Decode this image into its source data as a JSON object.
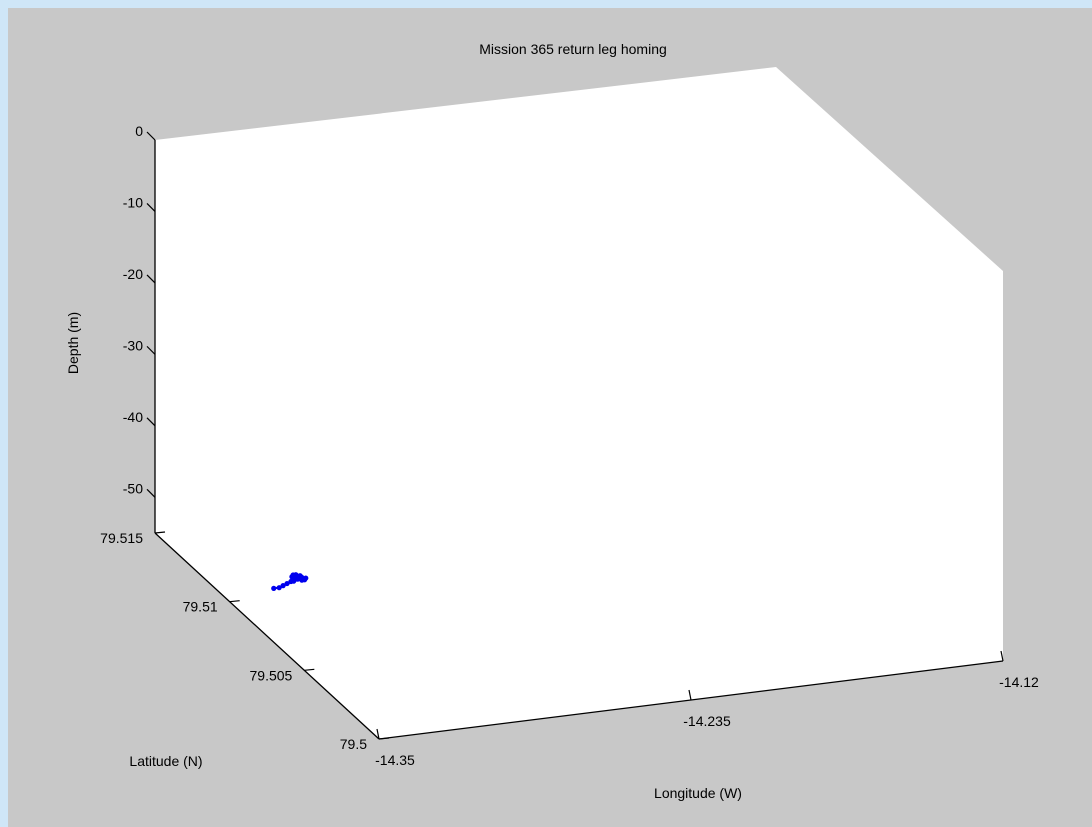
{
  "chart_data": {
    "type": "scatter",
    "projection": "3d",
    "title": "Mission 365 return leg homing",
    "xlabel": "Longitude (W)",
    "ylabel": "Latitude (N)",
    "zlabel": "Depth (m)",
    "xlim": [
      -14.35,
      -14.12
    ],
    "ylim": [
      79.5,
      79.515
    ],
    "zlim": [
      -55,
      0
    ],
    "x_ticks": [
      -14.35,
      -14.235,
      -14.12
    ],
    "x_tick_labels": [
      "-14.35",
      "-14.235",
      "-14.12"
    ],
    "y_ticks": [
      79.5,
      79.505,
      79.51,
      79.515
    ],
    "y_tick_labels": [
      "79.5",
      "79.505",
      "79.51",
      "79.515"
    ],
    "z_ticks": [
      0,
      -10,
      -20,
      -30,
      -40,
      -50
    ],
    "z_tick_labels": [
      "0",
      "-10",
      "-20",
      "-30",
      "-40",
      "-50"
    ],
    "grid": false,
    "series": [
      {
        "color": "#0000ee",
        "points": [
          {
            "x": -14.331,
            "y": 79.5105,
            "z": -55
          },
          {
            "x": -14.329,
            "y": 79.5105,
            "z": -55
          },
          {
            "x": -14.327,
            "y": 79.5106,
            "z": -55
          },
          {
            "x": -14.325,
            "y": 79.5107,
            "z": -55
          },
          {
            "x": -14.323,
            "y": 79.5108,
            "z": -55
          },
          {
            "x": -14.322,
            "y": 79.5108,
            "z": -55
          },
          {
            "x": -14.321,
            "y": 79.5109,
            "z": -55
          },
          {
            "x": -14.32,
            "y": 79.511,
            "z": -55
          },
          {
            "x": -14.319,
            "y": 79.5111,
            "z": -55
          },
          {
            "x": -14.318,
            "y": 79.511,
            "z": -55
          },
          {
            "x": -14.317,
            "y": 79.5109,
            "z": -55
          },
          {
            "x": -14.318,
            "y": 79.5108,
            "z": -55
          },
          {
            "x": -14.319,
            "y": 79.5108,
            "z": -55
          },
          {
            "x": -14.32,
            "y": 79.5109,
            "z": -55
          },
          {
            "x": -14.321,
            "y": 79.5111,
            "z": -55
          },
          {
            "x": -14.32,
            "y": 79.5112,
            "z": -55
          },
          {
            "x": -14.319,
            "y": 79.5112,
            "z": -55
          },
          {
            "x": -14.318,
            "y": 79.5111,
            "z": -55
          }
        ]
      }
    ]
  },
  "colors": {
    "page_background": "#cfe6f7",
    "figure_background": "#c8c8c8",
    "axes_background": "#ffffff",
    "series": "#0000ee"
  }
}
